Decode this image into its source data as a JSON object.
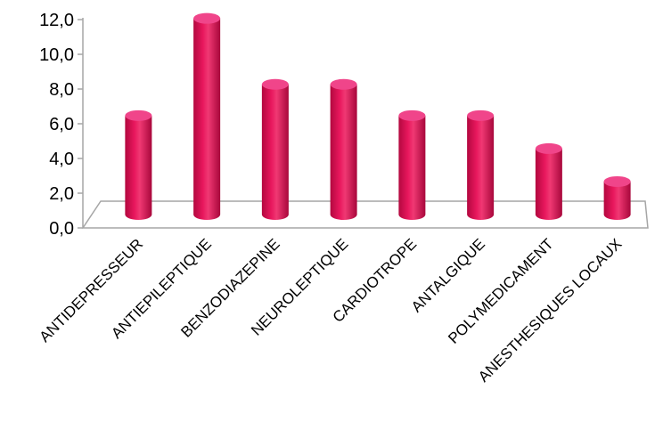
{
  "chart_data": {
    "type": "bar",
    "title": "",
    "xlabel": "",
    "ylabel": "",
    "categories": [
      "ANTIDEPRESSEUR",
      "ANTIEPILEPTIQUE",
      "BENZODIAZEPINE",
      "NEUROLEPTIQUE",
      "CARDIOTROPE",
      "ANTALGIQUE",
      "POLYMEDICAMENT",
      "ANESTHESIQUES LOCAUX"
    ],
    "values": [
      5.7,
      11.3,
      7.5,
      7.5,
      5.7,
      5.7,
      3.8,
      1.9
    ],
    "ylim": [
      0,
      12
    ],
    "yticks": [
      "0,0",
      "2,0",
      "4,0",
      "6,0",
      "8,0",
      "10,0",
      "12,0"
    ],
    "grid": false,
    "bar_color": "#e8175d",
    "bar_top_color": "#f0458a",
    "bar_dark_color": "#b3083f",
    "style": "3d-cylinder"
  }
}
